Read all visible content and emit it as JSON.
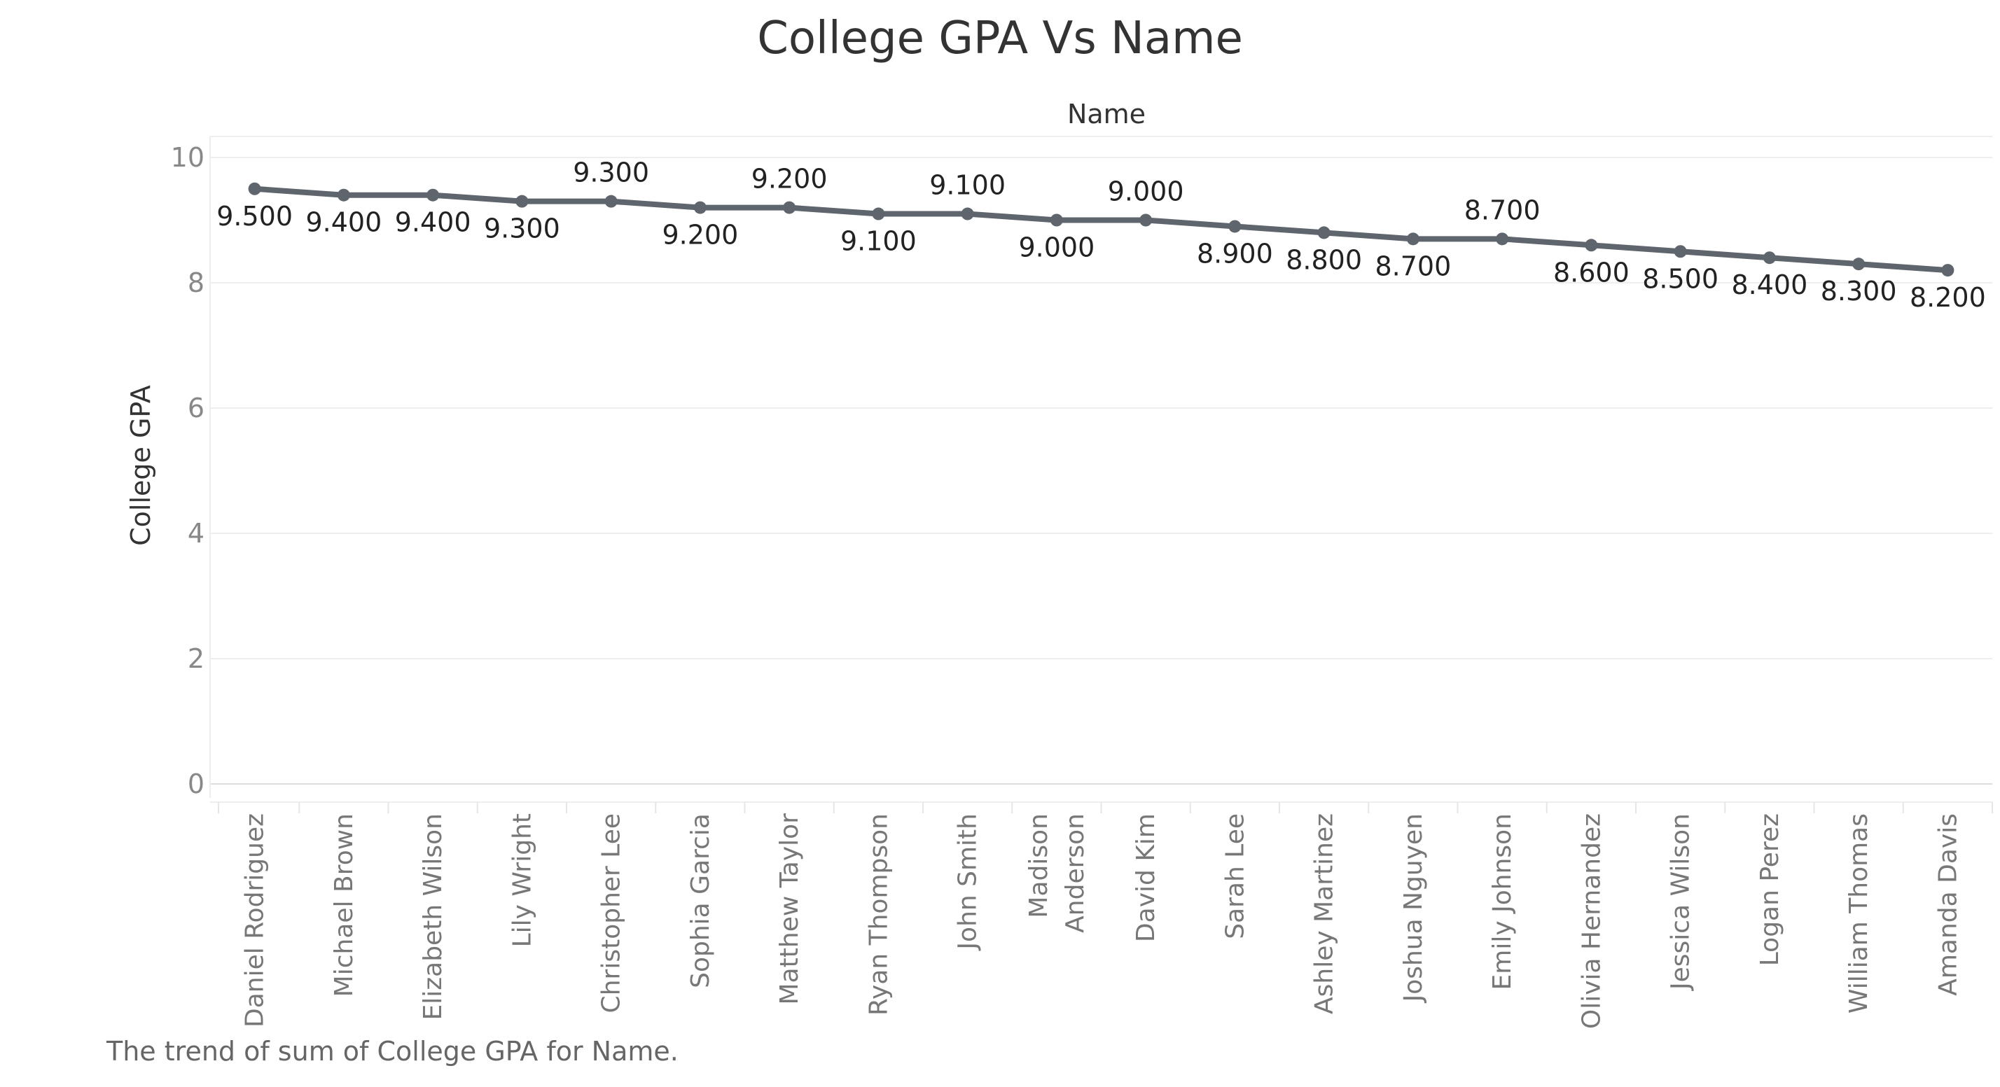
{
  "chart_data": {
    "type": "line",
    "title": "College GPA Vs Name",
    "top_axis_label": "Name",
    "ylabel": "College GPA",
    "caption": "The trend of sum of College GPA for Name.",
    "ylim": [
      0,
      10
    ],
    "yticks": [
      0,
      2,
      4,
      6,
      8,
      10
    ],
    "grid": true,
    "line_color": "#5f656d",
    "categories": [
      "Daniel Rodriguez",
      "Michael Brown",
      "Elizabeth Wilson",
      "Lily Wright",
      "Christopher Lee",
      "Sophia Garcia",
      "Matthew Taylor",
      "Ryan Thompson",
      "John Smith",
      "Madison Anderson",
      "David Kim",
      "Sarah Lee",
      "Ashley Martinez",
      "Joshua Nguyen",
      "Emily Johnson",
      "Olivia Hernandez",
      "Jessica Wilson",
      "Logan Perez",
      "William Thomas",
      "Amanda Davis"
    ],
    "values": [
      9.5,
      9.4,
      9.4,
      9.3,
      9.3,
      9.2,
      9.2,
      9.1,
      9.1,
      9.0,
      9.0,
      8.9,
      8.8,
      8.7,
      8.7,
      8.6,
      8.5,
      8.4,
      8.3,
      8.2
    ],
    "data_labels": [
      "9.500",
      "9.400",
      "9.400",
      "9.300",
      "9.300",
      "9.200",
      "9.200",
      "9.100",
      "9.100",
      "9.000",
      "9.000",
      "8.900",
      "8.800",
      "8.700",
      "8.700",
      "8.600",
      "8.500",
      "8.400",
      "8.300",
      "8.200"
    ]
  }
}
